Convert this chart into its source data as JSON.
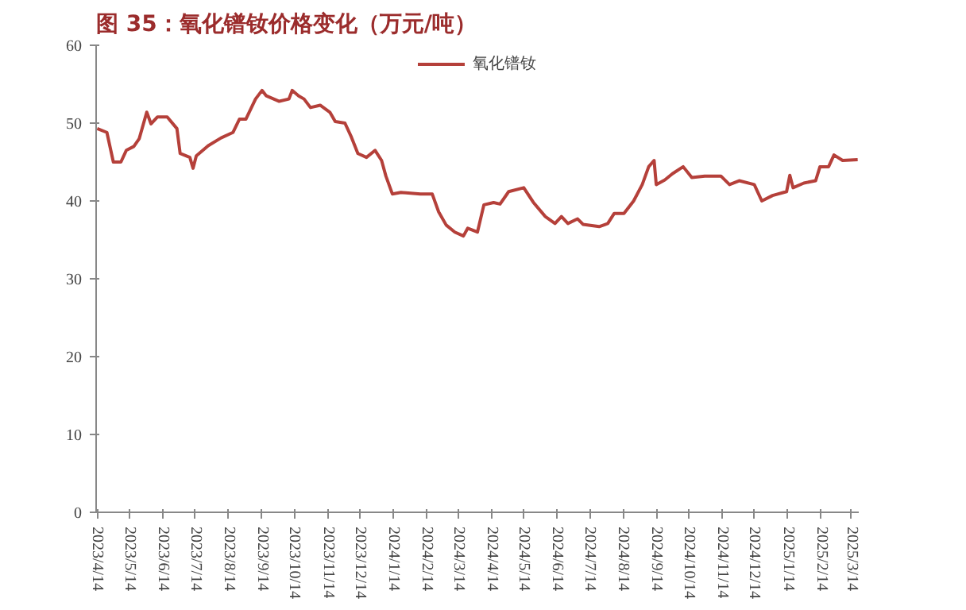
{
  "chart_data": {
    "type": "line",
    "title": "图 35：氧化镨钕价格变化（万元/吨）",
    "x": [
      "2023-04-14",
      "2023-04-23",
      "2023-04-29",
      "2023-05-06",
      "2023-05-11",
      "2023-05-18",
      "2023-05-23",
      "2023-05-30",
      "2023-06-03",
      "2023-06-09",
      "2023-06-18",
      "2023-06-27",
      "2023-06-30",
      "2023-07-09",
      "2023-07-12",
      "2023-07-15",
      "2023-07-26",
      "2023-08-07",
      "2023-08-18",
      "2023-08-24",
      "2023-08-30",
      "2023-09-08",
      "2023-09-14",
      "2023-09-18",
      "2023-09-30",
      "2023-10-09",
      "2023-10-12",
      "2023-10-18",
      "2023-10-23",
      "2023-10-29",
      "2023-11-07",
      "2023-11-16",
      "2023-11-21",
      "2023-11-30",
      "2023-12-06",
      "2023-12-12",
      "2023-12-20",
      "2023-12-28",
      "2024-01-03",
      "2024-01-07",
      "2024-01-13",
      "2024-01-21",
      "2024-02-08",
      "2024-02-19",
      "2024-02-25",
      "2024-03-03",
      "2024-03-11",
      "2024-03-19",
      "2024-03-23",
      "2024-04-01",
      "2024-04-07",
      "2024-04-16",
      "2024-04-22",
      "2024-04-30",
      "2024-05-14",
      "2024-05-23",
      "2024-06-03",
      "2024-06-12",
      "2024-06-18",
      "2024-06-24",
      "2024-07-03",
      "2024-07-08",
      "2024-07-23",
      "2024-07-31",
      "2024-08-06",
      "2024-08-15",
      "2024-08-24",
      "2024-09-01",
      "2024-09-07",
      "2024-09-12",
      "2024-09-14",
      "2024-09-22",
      "2024-09-29",
      "2024-10-09",
      "2024-10-17",
      "2024-10-29",
      "2024-11-13",
      "2024-11-21",
      "2024-11-30",
      "2024-12-14",
      "2024-12-21",
      "2024-12-31",
      "2025-01-13",
      "2025-01-16",
      "2025-01-19",
      "2025-01-29",
      "2025-02-09",
      "2025-02-13",
      "2025-02-21",
      "2025-02-26",
      "2025-03-06",
      "2025-03-20"
    ],
    "series": [
      {
        "name": "氧化镨钕",
        "color": "#b5403a",
        "values": [
          49.3,
          48.8,
          45,
          45,
          46.5,
          47,
          48,
          51.4,
          49.9,
          50.8,
          50.8,
          49.3,
          46.1,
          45.6,
          44.2,
          45.8,
          47.1,
          48.1,
          48.8,
          50.5,
          50.5,
          53.1,
          54.2,
          53.5,
          52.8,
          53.1,
          54.2,
          53.5,
          53.1,
          52,
          52.3,
          51.4,
          50.2,
          50,
          48.2,
          46.1,
          45.6,
          46.5,
          45.2,
          43.2,
          40.9,
          41.1,
          40.9,
          40.9,
          38.6,
          36.9,
          36,
          35.5,
          36.5,
          36,
          39.5,
          39.8,
          39.6,
          41.2,
          41.7,
          39.8,
          38,
          37.1,
          38,
          37.1,
          37.7,
          37,
          36.7,
          37.1,
          38.4,
          38.4,
          40,
          42.1,
          44.4,
          45.2,
          42.1,
          42.7,
          43.5,
          44.4,
          43,
          43.2,
          43.2,
          42.1,
          42.6,
          42.1,
          40,
          40.7,
          41.2,
          43.3,
          41.7,
          42.3,
          42.6,
          44.4,
          44.4,
          45.9,
          45.2,
          45.3
        ]
      }
    ],
    "xlim": [
      "2023-04-13",
      "2025-03-21"
    ],
    "xticks": [
      {
        "value": "2023-04-14",
        "label": "2023/4/14"
      },
      {
        "value": "2023-05-14",
        "label": "2023/5/14"
      },
      {
        "value": "2023-06-14",
        "label": "2023/6/14"
      },
      {
        "value": "2023-07-14",
        "label": "2023/7/14"
      },
      {
        "value": "2023-08-14",
        "label": "2023/8/14"
      },
      {
        "value": "2023-09-14",
        "label": "2023/9/14"
      },
      {
        "value": "2023-10-14",
        "label": "2023/10/14"
      },
      {
        "value": "2023-11-14",
        "label": "2023/11/14"
      },
      {
        "value": "2023-12-14",
        "label": "2023/12/14"
      },
      {
        "value": "2024-01-14",
        "label": "2024/1/14"
      },
      {
        "value": "2024-02-14",
        "label": "2024/2/14"
      },
      {
        "value": "2024-03-14",
        "label": "2024/3/14"
      },
      {
        "value": "2024-04-14",
        "label": "2024/4/14"
      },
      {
        "value": "2024-05-14",
        "label": "2024/5/14"
      },
      {
        "value": "2024-06-14",
        "label": "2024/6/14"
      },
      {
        "value": "2024-07-14",
        "label": "2024/7/14"
      },
      {
        "value": "2024-08-14",
        "label": "2024/8/14"
      },
      {
        "value": "2024-09-14",
        "label": "2024/9/14"
      },
      {
        "value": "2024-10-14",
        "label": "2024/10/14"
      },
      {
        "value": "2024-11-14",
        "label": "2024/11/14"
      },
      {
        "value": "2024-12-14",
        "label": "2024/12/14"
      },
      {
        "value": "2025-01-14",
        "label": "2025/1/14"
      },
      {
        "value": "2025-02-14",
        "label": "2025/2/14"
      },
      {
        "value": "2025-03-14",
        "label": "2025/3/14"
      }
    ],
    "ylim": [
      0,
      60
    ],
    "yticks": [
      0,
      10,
      20,
      30,
      40,
      50,
      60
    ],
    "grid": false,
    "legend": "top",
    "marker": "none",
    "line_style": "solid"
  }
}
